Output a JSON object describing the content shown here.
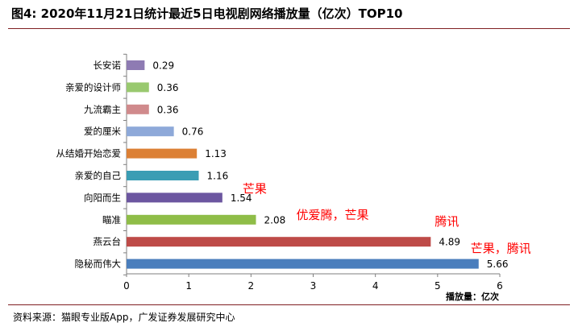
{
  "title": "图4: 2020年11月21日统计最近5日电视剧网络播放量（亿次）TOP10",
  "source": "资料来源：猫眼专业版App，广发证券发展研究中心",
  "chart_data": {
    "type": "bar",
    "orientation": "horizontal",
    "categories": [
      "长安诺",
      "亲爱的设计师",
      "九流霸主",
      "爱的厘米",
      "从结婚开始恋爱",
      "亲爱的自己",
      "向阳而生",
      "瞄准",
      "燕云台",
      "隐秘而伟大"
    ],
    "values": [
      0.29,
      0.36,
      0.36,
      0.76,
      1.13,
      1.16,
      1.54,
      2.08,
      4.89,
      5.66
    ],
    "value_labels": [
      "0.29",
      "0.36",
      "0.36",
      "0.76",
      "1.13",
      "1.16",
      "1.54",
      "2.08",
      "4.89",
      "5.66"
    ],
    "colors": [
      "#8e7bb3",
      "#99c96f",
      "#d08a8c",
      "#8ea9d9",
      "#dc8035",
      "#3a9db4",
      "#6c56a0",
      "#8fbd48",
      "#be4b48",
      "#4a7ebd"
    ],
    "annotations": [
      "",
      "",
      "",
      "",
      "",
      "",
      "芒果",
      "优爱腾，芒果",
      "腾讯",
      "芒果，腾讯"
    ],
    "annotation_color": "#ff0000",
    "xlim": [
      0,
      6
    ],
    "xticks": [
      0,
      1,
      2,
      3,
      4,
      5,
      6
    ],
    "xlabel": "播放量：亿次",
    "ylabel": "",
    "grid": false
  }
}
